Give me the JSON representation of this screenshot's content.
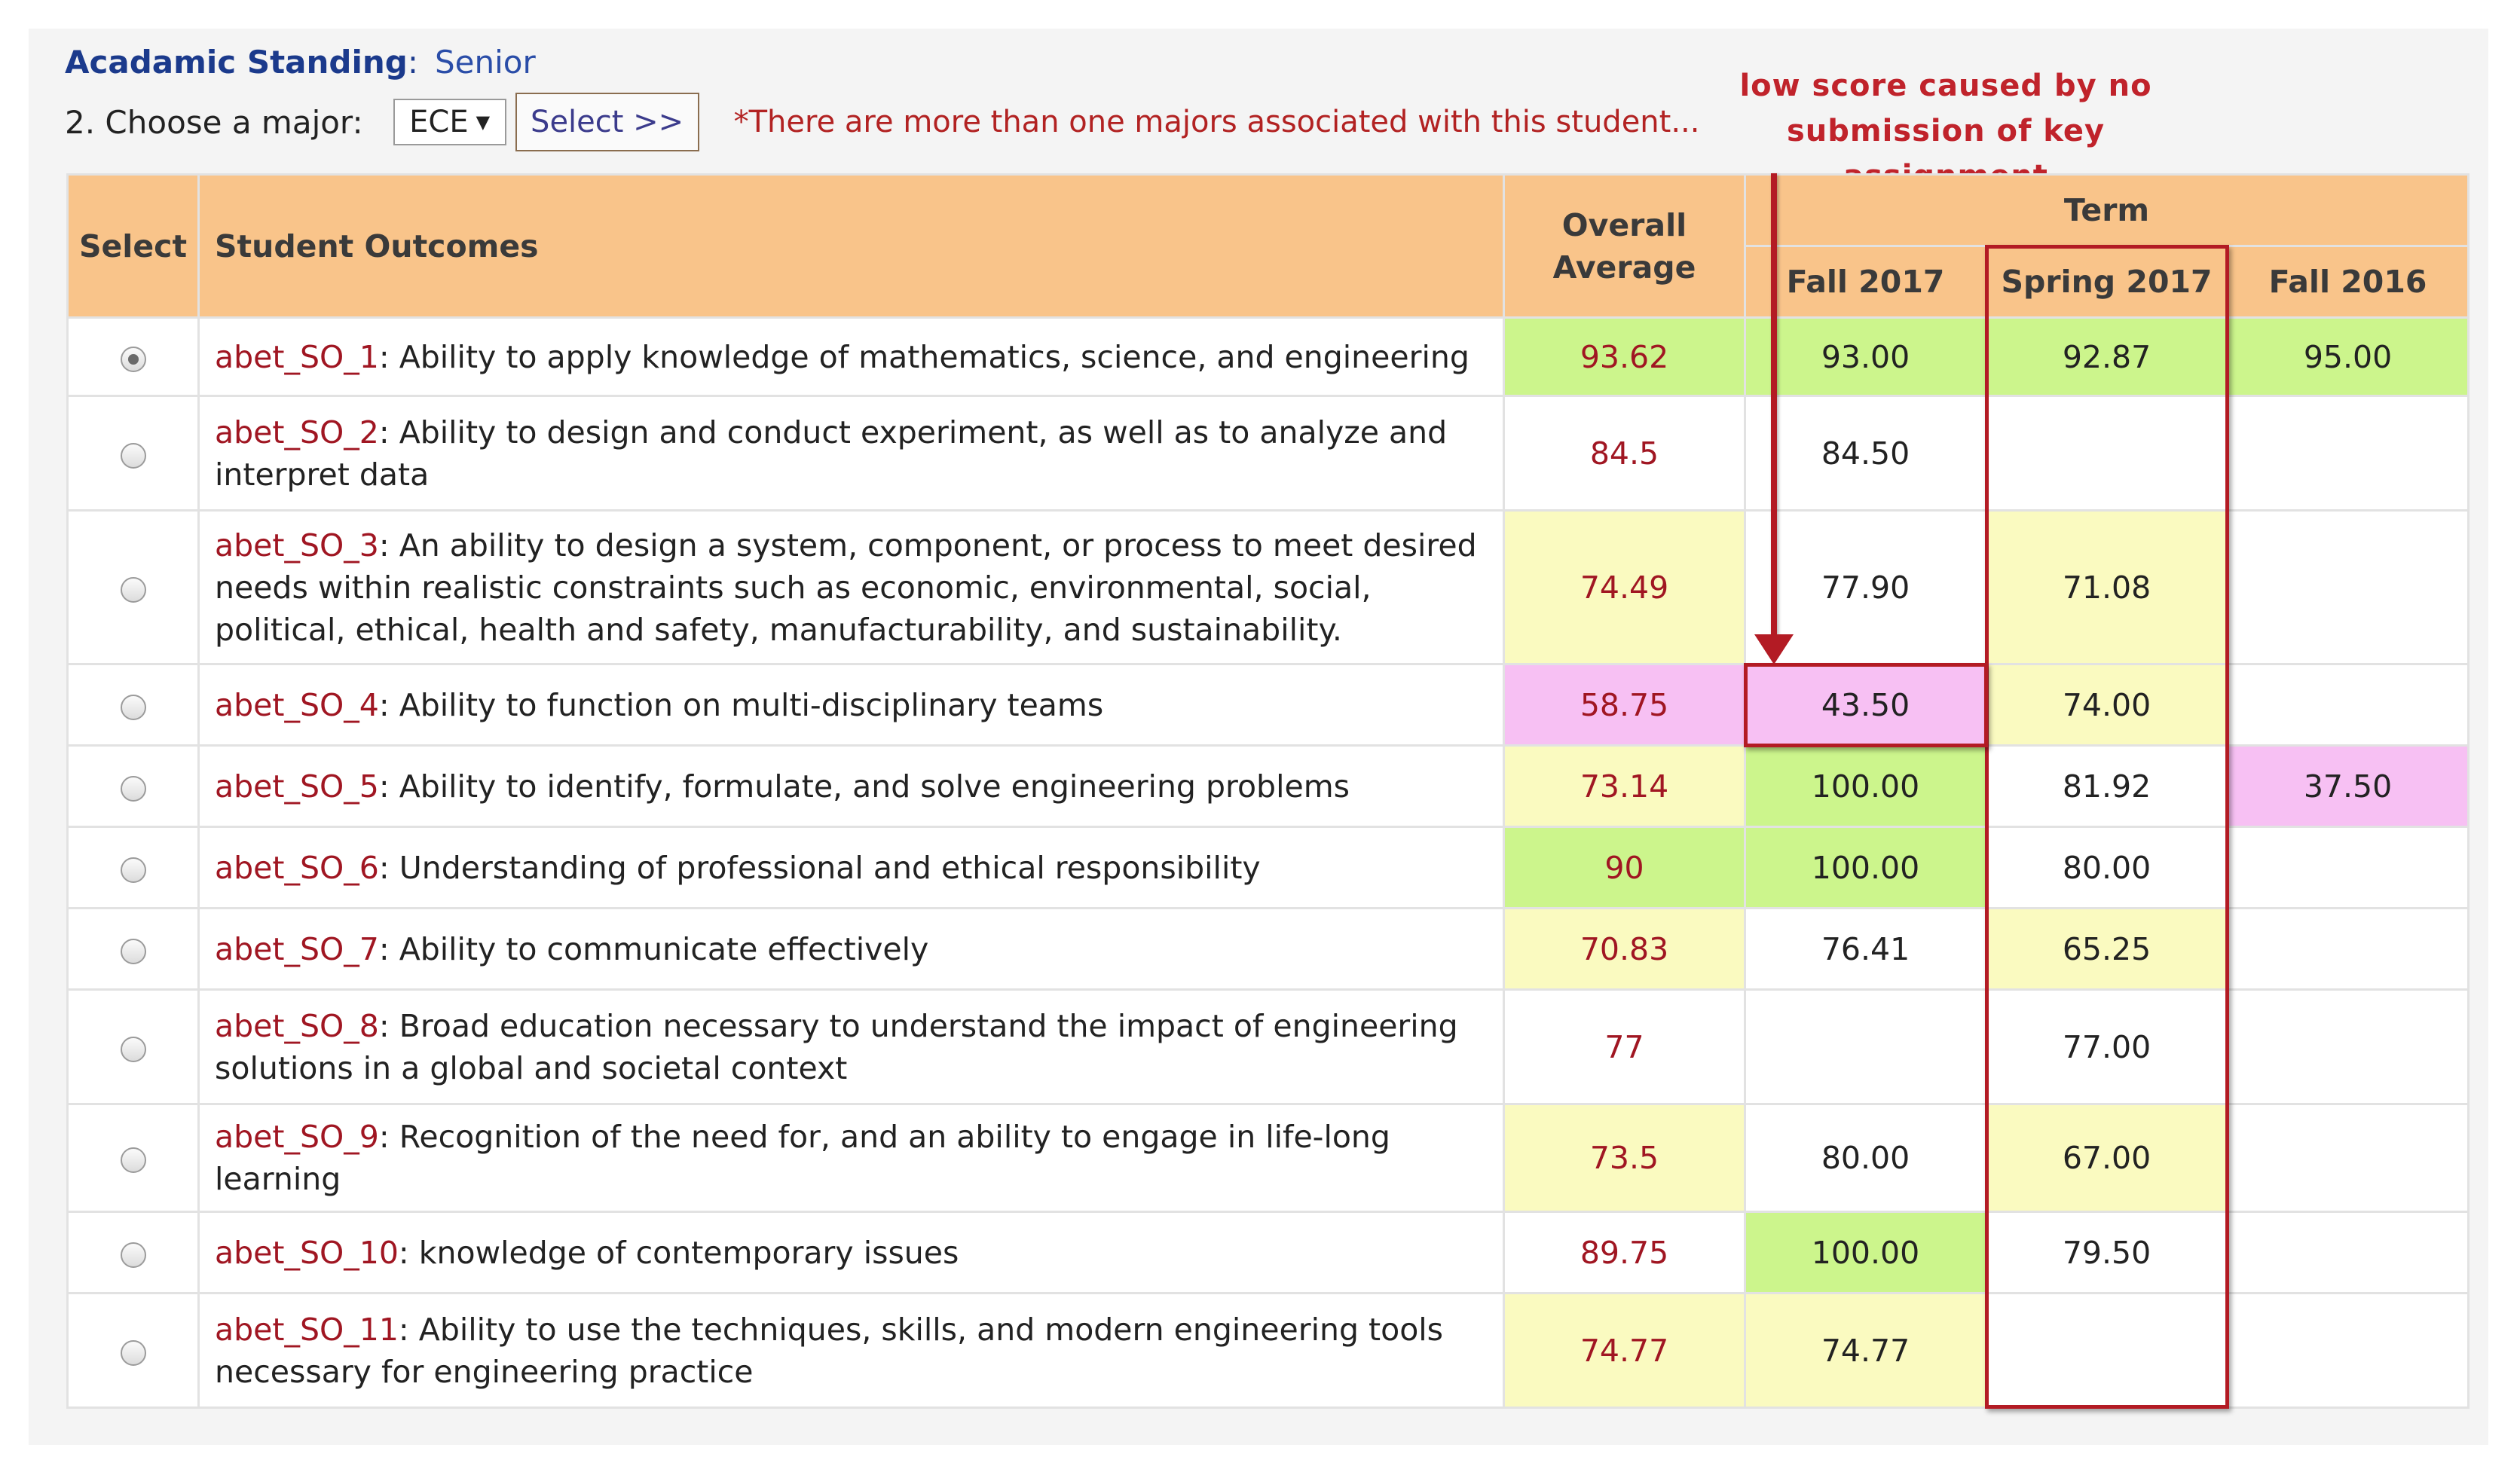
{
  "standing": {
    "label": "Acadamic Standing",
    "colon": ":",
    "value": "Senior"
  },
  "major": {
    "label": "2. Choose a major:",
    "selected": "ECE",
    "select_button": "Select >>",
    "notice": "*There are more than one majors associated with this student..."
  },
  "annotation": {
    "line1": "low score caused by no",
    "line2": "submission of key assignment"
  },
  "table": {
    "headers": {
      "select": "Select",
      "outcomes": "Student Outcomes",
      "overall_line1": "Overall",
      "overall_line2": "Average",
      "term": "Term",
      "terms": [
        "Fall 2017",
        "Spring 2017",
        "Fall 2016"
      ]
    },
    "rows": [
      {
        "selected": true,
        "code": "abet_SO_1",
        "desc": "Ability to apply knowledge of mathematics, science, and engineering",
        "avg": "93.62",
        "avg_color": "green",
        "t": [
          "93.00",
          "92.87",
          "95.00"
        ],
        "t_color": [
          "green",
          "green",
          "green"
        ]
      },
      {
        "selected": false,
        "code": "abet_SO_2",
        "desc": "Ability to design and conduct experiment, as well as to analyze and interpret data",
        "avg": "84.5",
        "avg_color": "white",
        "t": [
          "84.50",
          "",
          ""
        ],
        "t_color": [
          "white",
          "white",
          "white"
        ]
      },
      {
        "selected": false,
        "code": "abet_SO_3",
        "desc": "An ability to design a system, component, or process to meet desired needs within realistic constraints such as economic, environmental, social, political, ethical, health and safety, manufacturability, and sustainability.",
        "avg": "74.49",
        "avg_color": "yellow",
        "t": [
          "77.90",
          "71.08",
          ""
        ],
        "t_color": [
          "white",
          "yellow",
          "white"
        ]
      },
      {
        "selected": false,
        "code": "abet_SO_4",
        "desc": "Ability to function on multi-disciplinary teams",
        "avg": "58.75",
        "avg_color": "pink",
        "t": [
          "43.50",
          "74.00",
          ""
        ],
        "t_color": [
          "pink",
          "yellow",
          "white"
        ]
      },
      {
        "selected": false,
        "code": "abet_SO_5",
        "desc": "Ability to identify, formulate, and solve engineering problems",
        "avg": "73.14",
        "avg_color": "yellow",
        "t": [
          "100.00",
          "81.92",
          "37.50"
        ],
        "t_color": [
          "green",
          "white",
          "pink"
        ]
      },
      {
        "selected": false,
        "code": "abet_SO_6",
        "desc": "Understanding of professional and ethical responsibility",
        "avg": "90",
        "avg_color": "green",
        "t": [
          "100.00",
          "80.00",
          ""
        ],
        "t_color": [
          "green",
          "white",
          "white"
        ]
      },
      {
        "selected": false,
        "code": "abet_SO_7",
        "desc": "Ability to communicate effectively",
        "avg": "70.83",
        "avg_color": "yellow",
        "t": [
          "76.41",
          "65.25",
          ""
        ],
        "t_color": [
          "white",
          "yellow",
          "white"
        ]
      },
      {
        "selected": false,
        "code": "abet_SO_8",
        "desc": "Broad education necessary to understand the impact of engineering solutions in a global and societal context",
        "avg": "77",
        "avg_color": "white",
        "t": [
          "",
          "77.00",
          ""
        ],
        "t_color": [
          "white",
          "white",
          "white"
        ]
      },
      {
        "selected": false,
        "code": "abet_SO_9",
        "desc": "Recognition of the need for, and an ability to engage in life-long learning",
        "avg": "73.5",
        "avg_color": "yellow",
        "t": [
          "80.00",
          "67.00",
          ""
        ],
        "t_color": [
          "white",
          "yellow",
          "white"
        ]
      },
      {
        "selected": false,
        "code": "abet_SO_10",
        "desc": "knowledge of contemporary issues",
        "avg": "89.75",
        "avg_color": "white",
        "t": [
          "100.00",
          "79.50",
          ""
        ],
        "t_color": [
          "green",
          "white",
          "white"
        ]
      },
      {
        "selected": false,
        "code": "abet_SO_11",
        "desc": "Ability to use the techniques, skills, and modern engineering tools necessary for engineering practice",
        "avg": "74.77",
        "avg_color": "yellow",
        "t": [
          "74.77",
          "",
          ""
        ],
        "t_color": [
          "yellow",
          "white",
          "white"
        ]
      }
    ]
  }
}
